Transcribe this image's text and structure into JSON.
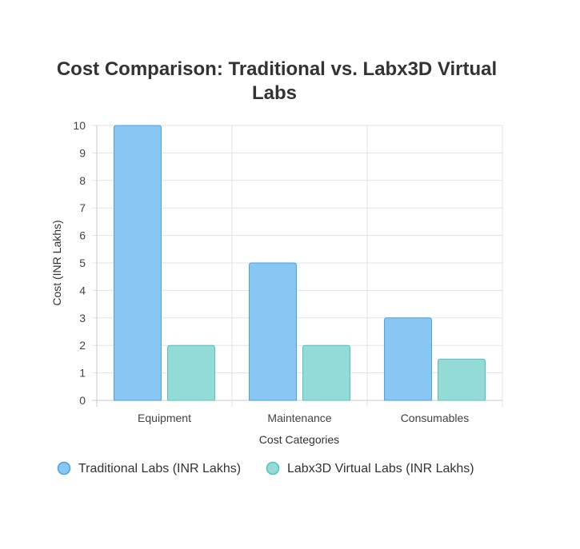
{
  "chart_data": {
    "type": "bar",
    "title": "Cost Comparison: Traditional vs. Labx3D Virtual Labs",
    "title_lines": [
      "Cost Comparison: Traditional vs. Labx3D Virtual",
      "Labs"
    ],
    "xlabel": "Cost Categories",
    "ylabel": "Cost (INR Lakhs)",
    "categories": [
      "Equipment",
      "Maintenance",
      "Consumables"
    ],
    "ylim": [
      0,
      10
    ],
    "yticks": [
      "0",
      "1",
      "2",
      "3",
      "4",
      "5",
      "6",
      "7",
      "8",
      "9",
      "10"
    ],
    "grid": true,
    "legend_position": "bottom",
    "series": [
      {
        "name": "Traditional Labs (INR Lakhs)",
        "values": [
          10,
          5,
          3
        ],
        "fill": "#88c6f4",
        "stroke": "#4aa3e2"
      },
      {
        "name": "Labx3D Virtual Labs (INR Lakhs)",
        "values": [
          2,
          2,
          1.5
        ],
        "fill": "#92dbd7",
        "stroke": "#55c2bd"
      }
    ]
  }
}
